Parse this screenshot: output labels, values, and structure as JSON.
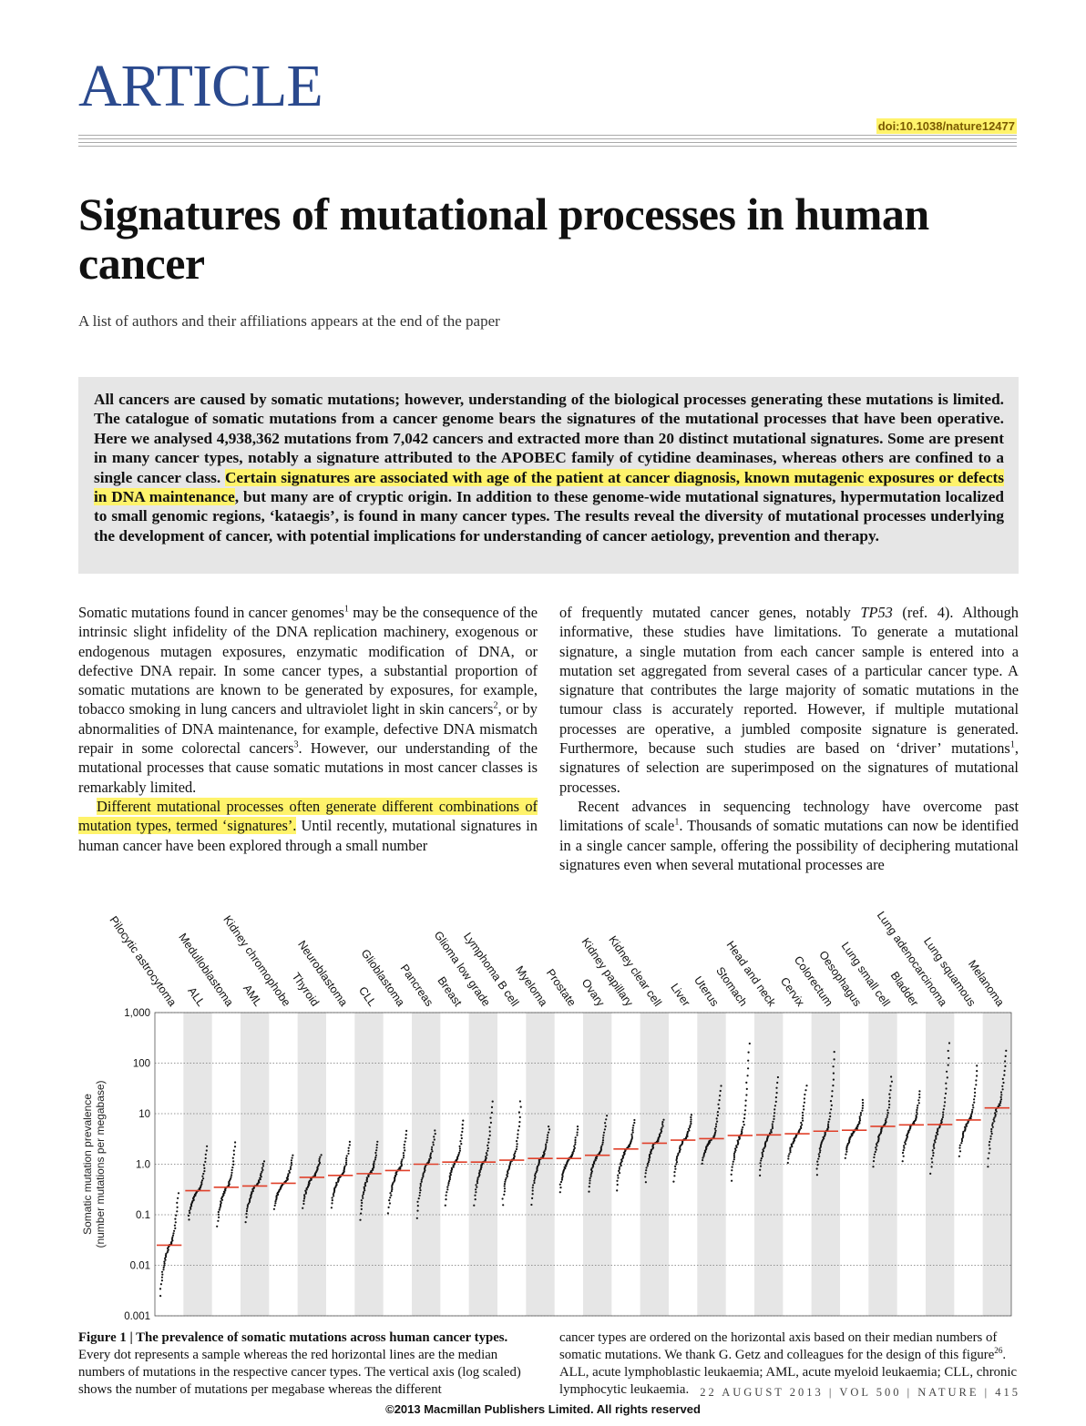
{
  "header": {
    "section": "ARTICLE",
    "doi": "doi:10.1038/nature12477"
  },
  "title": "Signatures of mutational processes in human cancer",
  "authors_note": "A list of authors and their affiliations appears at the end of the paper",
  "abstract": {
    "before_highlight": "All cancers are caused by somatic mutations; however, understanding of the biological processes generating these mutations is limited. The catalogue of somatic mutations from a cancer genome bears the signatures of the mutational processes that have been operative. Here we analysed 4,938,362 mutations from 7,042 cancers and extracted more than 20 distinct mutational signatures. Some are present in many cancer types, notably a signature attributed to the APOBEC family of cytidine deaminases, whereas others are confined to a single cancer class. ",
    "highlight": "Certain signatures are associated with age of the patient at cancer diagnosis, known mutagenic exposures or defects in DNA maintenance",
    "after_highlight": ", but many are of cryptic origin. In addition to these genome-wide mutational signatures, hypermutation localized to small genomic regions, ‘kataegis’, is found in many cancer types. The results reveal the diversity of mutational processes underlying the development of cancer, with potential implications for understanding of cancer aetiology, prevention and therapy."
  },
  "body": {
    "left_p1_a": "Somatic mutations found in cancer genomes",
    "left_p1_sup1": "1",
    "left_p1_b": " may be the consequence of the intrinsic slight infidelity of the DNA replication machinery, exogenous or endogenous mutagen exposures, enzymatic modification of DNA, or defective DNA repair. In some cancer types, a substantial proportion of somatic mutations are known to be generated by exposures, for example, tobacco smoking in lung cancers and ultraviolet light in skin cancers",
    "left_p1_sup2": "2",
    "left_p1_c": ", or by abnormalities of DNA maintenance, for example, defective DNA mismatch repair in some colorectal cancers",
    "left_p1_sup3": "3",
    "left_p1_d": ". However, our understanding of the mutational processes that cause somatic mutations in most cancer classes is remarkably limited.",
    "left_p2_highlight": "Different mutational processes often generate different combinations of mutation types, termed ‘signatures’.",
    "left_p2_rest": " Until recently, mutational signatures in human cancer have been explored through a small number",
    "right_p1_a": "of frequently mutated cancer genes, notably ",
    "right_p1_gene": "TP53",
    "right_p1_b": " (ref. 4). Although informative, these studies have limitations. To generate a mutational signature, a single mutation from each cancer sample is entered into a mutation set aggregated from several cases of a particular cancer type. A signature that contributes the large majority of somatic mutations in the tumour class is accurately reported. However, if multiple mutational processes are operative, a jumbled composite signature is generated. Furthermore, because such studies are based on ‘driver’ mutations",
    "right_p1_sup": "1",
    "right_p1_c": ", signatures of selection are superimposed on the signatures of mutational processes.",
    "right_p2_a": "Recent advances in sequencing technology have overcome past limitations of scale",
    "right_p2_sup": "1",
    "right_p2_b": ". Thousands of somatic mutations can now be identified in a single cancer sample, offering the possibility of deciphering mutational signatures even when several mutational processes are"
  },
  "figure": {
    "caption_label": "Figure 1",
    "caption_title": "The prevalence of somatic mutations across human cancer types.",
    "caption_left": "Every dot represents a sample whereas the red horizontal lines are the median numbers of mutations in the respective cancer types. The vertical axis (log scaled) shows the number of mutations per megabase whereas the different",
    "caption_right_a": "cancer types are ordered on the horizontal axis based on their median numbers of somatic mutations. We thank G. Getz and colleagues for the design of this figure",
    "caption_right_sup": "26",
    "caption_right_b": ". ALL, acute lymphoblastic leukaemia; AML, acute myeloid leukaemia; CLL, chronic lymphocytic leukaemia."
  },
  "chart_data": {
    "type": "scatter",
    "title": "",
    "xlabel": "",
    "ylabel": "Somatic mutation prevalence",
    "ylabel_units": "(number mutations per megabase)",
    "yscale": "log",
    "ylim": [
      0.001,
      1000
    ],
    "yticks": [
      "0.001",
      "0.01",
      "0.1",
      "1.0",
      "10",
      "100",
      "1,000"
    ],
    "median_color": "#e0402a",
    "point_color": "#111111",
    "categories": [
      "Pilocytic astrocytoma",
      "ALL",
      "Medulloblastoma",
      "AML",
      "Kidney chromophobe",
      "Thyroid",
      "Neuroblastoma",
      "CLL",
      "Glioblastoma",
      "Pancreas",
      "Breast",
      "Glioma low grade",
      "Lymphoma B cell",
      "Myeloma",
      "Prostate",
      "Ovary",
      "Kidney papillary",
      "Kidney clear cell",
      "Liver",
      "Uterus",
      "Stomach",
      "Head and neck",
      "Cervix",
      "Colorectum",
      "Oesophagus",
      "Lung small cell",
      "Bladder",
      "Lung adenocarcinoma",
      "Lung squamous",
      "Melanoma"
    ],
    "medians": [
      0.025,
      0.3,
      0.35,
      0.37,
      0.42,
      0.55,
      0.6,
      0.65,
      0.75,
      1.0,
      1.1,
      1.1,
      1.2,
      1.3,
      1.3,
      1.5,
      2.0,
      2.6,
      3.0,
      3.2,
      3.7,
      3.8,
      4.0,
      4.5,
      4.7,
      5.6,
      6.0,
      6.1,
      7.5,
      13.0
    ],
    "ranges": [
      [
        0.0015,
        0.3
      ],
      [
        0.06,
        2.5
      ],
      [
        0.04,
        3.0
      ],
      [
        0.05,
        1.2
      ],
      [
        0.1,
        1.6
      ],
      [
        0.1,
        1.6
      ],
      [
        0.1,
        3.0
      ],
      [
        0.05,
        3.0
      ],
      [
        0.07,
        5.0
      ],
      [
        0.05,
        5.0
      ],
      [
        0.1,
        8.0
      ],
      [
        0.1,
        20.0
      ],
      [
        0.1,
        20.0
      ],
      [
        0.1,
        6.0
      ],
      [
        0.2,
        6.0
      ],
      [
        0.2,
        10.0
      ],
      [
        0.2,
        8.0
      ],
      [
        0.3,
        8.0
      ],
      [
        0.3,
        10.0
      ],
      [
        0.8,
        40.0
      ],
      [
        0.3,
        300.0
      ],
      [
        0.4,
        60.0
      ],
      [
        0.8,
        40.0
      ],
      [
        0.4,
        200.0
      ],
      [
        1.0,
        20.0
      ],
      [
        0.6,
        60.0
      ],
      [
        0.8,
        30.0
      ],
      [
        0.4,
        300.0
      ],
      [
        1.0,
        100.0
      ],
      [
        0.5,
        200.0
      ]
    ]
  }
}
